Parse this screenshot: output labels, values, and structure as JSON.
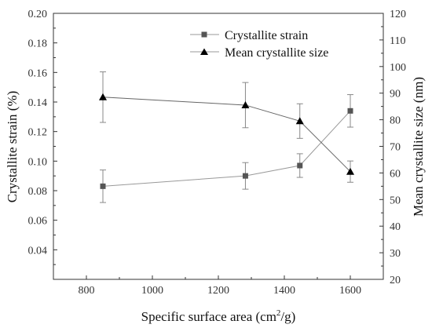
{
  "chart_data": {
    "type": "line",
    "xlabel": "Specific surface area (cm²/g)",
    "xlabel_parts": {
      "main": "Specific surface area (cm",
      "sup": "2",
      "tail": "/g)"
    },
    "ylabel": "Crystallite strain (%)",
    "y2label": "Mean  crystallite size (nm)",
    "xlim": [
      700,
      1700
    ],
    "ylim": [
      0.02,
      0.2
    ],
    "y2lim": [
      20,
      120
    ],
    "x_ticks": [
      800,
      1000,
      1200,
      1400,
      1600
    ],
    "y_ticks": [
      "0.04",
      "0.06",
      "0.08",
      "0.10",
      "0.12",
      "0.14",
      "0.16",
      "0.18",
      "0.20"
    ],
    "y2_ticks": [
      20,
      30,
      40,
      50,
      60,
      70,
      80,
      90,
      100,
      110,
      120
    ],
    "legend_position": "top-right",
    "grid": false,
    "series": [
      {
        "name": "Crystallite strain",
        "axis": "left",
        "marker": "square",
        "color": "#555555",
        "x": [
          850,
          1282,
          1447,
          1600
        ],
        "y": [
          0.083,
          0.09,
          0.097,
          0.134
        ],
        "err": [
          0.011,
          0.009,
          0.008,
          0.011
        ]
      },
      {
        "name": "Mean crystallite size",
        "axis": "right",
        "marker": "triangle",
        "color": "#000000",
        "x": [
          850,
          1282,
          1447,
          1600
        ],
        "y": [
          88.5,
          85.5,
          79.5,
          60.5
        ],
        "err": [
          9.5,
          8.5,
          6.5,
          4.0
        ]
      }
    ]
  }
}
